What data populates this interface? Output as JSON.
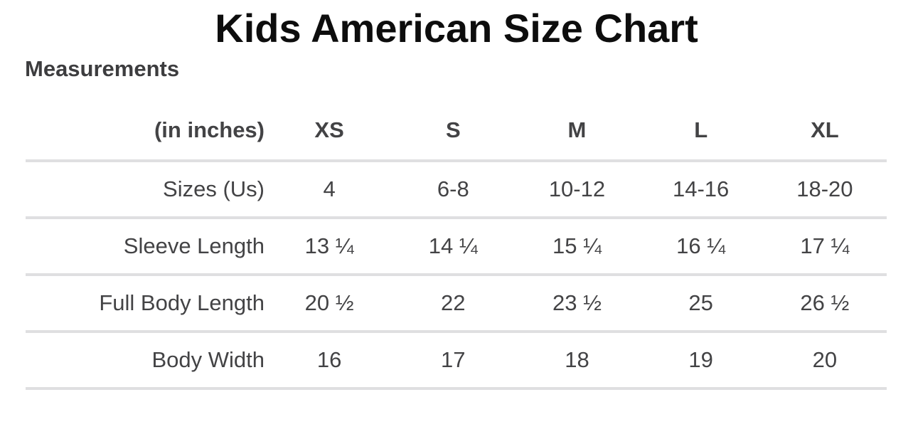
{
  "page": {
    "title": "Kids American Size Chart",
    "section_heading": "Measurements"
  },
  "chart_data": {
    "type": "table",
    "title": "Kids American Size Chart",
    "unit_note": "(in inches)",
    "columns": [
      "XS",
      "S",
      "M",
      "L",
      "XL"
    ],
    "rows": [
      {
        "label": "Sizes (Us)",
        "values": [
          "4",
          "6-8",
          "10-12",
          "14-16",
          "18-20"
        ]
      },
      {
        "label": "Sleeve Length",
        "values": [
          "13 ¼",
          "14 ¼",
          "15 ¼",
          "16 ¼",
          "17 ¼"
        ]
      },
      {
        "label": "Full Body Length",
        "values": [
          "20 ½",
          "22",
          "23 ½",
          "25",
          "26 ½"
        ]
      },
      {
        "label": "Body Width",
        "values": [
          "16",
          "17",
          "18",
          "19",
          "20"
        ]
      }
    ]
  },
  "colors": {
    "title_text": "#0d0d0d",
    "heading_text": "#3d3d3f",
    "body_text": "#434345",
    "divider": "#dfdfe1",
    "background": "#ffffff"
  }
}
